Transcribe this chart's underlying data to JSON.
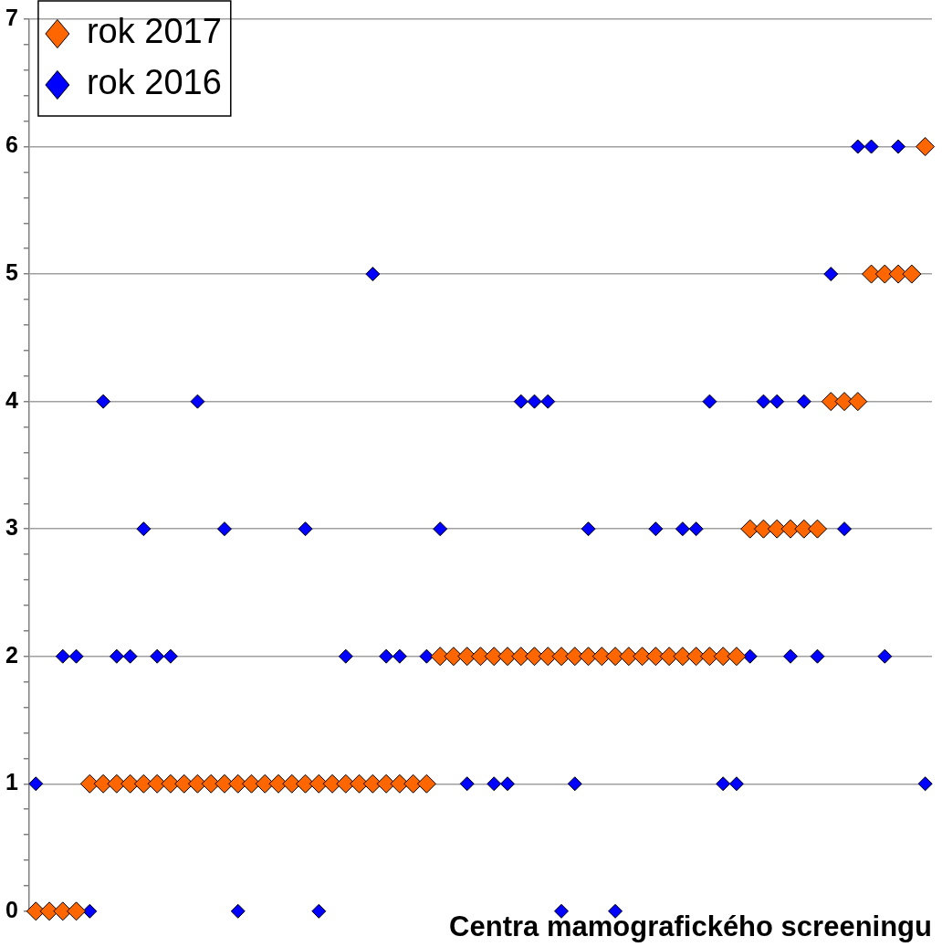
{
  "chart_data": {
    "type": "scatter",
    "xlabel": "Centra mamografického screeningu",
    "categories": [
      null,
      null,
      null,
      null,
      null,
      null,
      null,
      null,
      null,
      null,
      null,
      null,
      null,
      null,
      null,
      null,
      null,
      null,
      null,
      null,
      null,
      null,
      null,
      null,
      null,
      null,
      null,
      null,
      null,
      null,
      null,
      null,
      null,
      null,
      null,
      null,
      null,
      null,
      null,
      null,
      null,
      null,
      null,
      null,
      null,
      null,
      null,
      null,
      null,
      null,
      null,
      null,
      null,
      null,
      null,
      null,
      null,
      null,
      null,
      null,
      null,
      null,
      null,
      null,
      null,
      null,
      null
    ],
    "series": [
      {
        "name": "rok 2017",
        "color": "#ff6600",
        "values": [
          0,
          0,
          0,
          0,
          1,
          1,
          1,
          1,
          1,
          1,
          1,
          1,
          1,
          1,
          1,
          1,
          1,
          1,
          1,
          1,
          1,
          1,
          1,
          1,
          1,
          1,
          1,
          1,
          1,
          1,
          2,
          2,
          2,
          2,
          2,
          2,
          2,
          2,
          2,
          2,
          2,
          2,
          2,
          2,
          2,
          2,
          2,
          2,
          2,
          2,
          2,
          2,
          2,
          3,
          3,
          3,
          3,
          3,
          3,
          4,
          4,
          4,
          5,
          5,
          5,
          5,
          6
        ]
      },
      {
        "name": "rok 2016",
        "color": "#0000ff",
        "values": [
          1,
          null,
          2,
          2,
          0,
          4,
          2,
          2,
          3,
          2,
          2,
          null,
          4,
          null,
          3,
          0,
          null,
          null,
          null,
          null,
          3,
          0,
          null,
          2,
          null,
          5,
          2,
          2,
          null,
          2,
          3,
          null,
          1,
          null,
          1,
          1,
          4,
          4,
          4,
          0,
          1,
          3,
          null,
          0,
          null,
          null,
          3,
          null,
          3,
          3,
          4,
          1,
          1,
          2,
          4,
          4,
          2,
          4,
          2,
          5,
          3,
          6,
          6,
          2,
          6,
          null,
          1
        ]
      }
    ],
    "ylim": [
      0,
      7
    ],
    "yticks": [
      0,
      {
        "value": 0.2,
        "label": null
      },
      {
        "value": 0.4,
        "label": null
      },
      {
        "value": 0.6,
        "label": null
      },
      {
        "value": 0.8,
        "label": null
      },
      1,
      {
        "value": 1.2,
        "label": null
      },
      {
        "value": 1.4,
        "label": null
      },
      {
        "value": 1.6,
        "label": null
      },
      {
        "value": 1.8,
        "label": null
      },
      2,
      {
        "value": 2.2,
        "label": null
      },
      {
        "value": 2.4,
        "label": null
      },
      {
        "value": 2.6,
        "label": null
      },
      {
        "value": 2.8,
        "label": null
      },
      3,
      {
        "value": 3.2,
        "label": null
      },
      {
        "value": 3.4,
        "label": null
      },
      {
        "value": 3.6,
        "label": null
      },
      {
        "value": 3.8,
        "label": null
      },
      4,
      {
        "value": 4.2,
        "label": null
      },
      {
        "value": 4.4,
        "label": null
      },
      {
        "value": 4.6,
        "label": null
      },
      {
        "value": 4.8,
        "label": null
      },
      5,
      {
        "value": 5.2,
        "label": null
      },
      {
        "value": 5.4,
        "label": null
      },
      {
        "value": 5.6,
        "label": null
      },
      {
        "value": 5.8,
        "label": null
      },
      6,
      {
        "value": 6.2,
        "label": null
      },
      {
        "value": 6.4,
        "label": null
      },
      {
        "value": 6.6,
        "label": null
      },
      {
        "value": 6.8,
        "label": null
      },
      7
    ],
    "grid": "y",
    "legend": "top left",
    "marker": "diamond",
    "tick_labels": "y"
  }
}
